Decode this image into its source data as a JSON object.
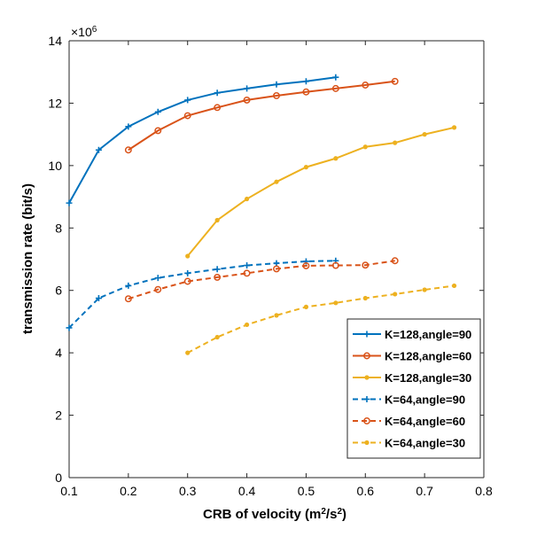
{
  "chart_data": {
    "type": "line",
    "title": "",
    "xlabel": "CRB of velocity (m",
    "xlabel_sup1": "2",
    "xlabel_mid": "/s",
    "xlabel_sup2": "2",
    "xlabel_end": ")",
    "ylabel": "transmission rate (bit/s)",
    "y_multiplier": "×10",
    "y_multiplier_exp": "6",
    "xlim": [
      0.1,
      0.8
    ],
    "ylim": [
      0,
      14
    ],
    "xticks": [
      "0.1",
      "0.2",
      "0.3",
      "0.4",
      "0.5",
      "0.6",
      "0.7",
      "0.8"
    ],
    "yticks": [
      "0",
      "2",
      "4",
      "6",
      "8",
      "10",
      "12",
      "14"
    ],
    "legend_position": "bottom-right",
    "series": [
      {
        "name": "K=128,angle=90",
        "color": "#0072BD",
        "dash": false,
        "marker": "plus",
        "x": [
          0.1,
          0.15,
          0.2,
          0.25,
          0.3,
          0.35,
          0.4,
          0.45,
          0.5,
          0.55
        ],
        "y": [
          8.8,
          10.5,
          11.25,
          11.72,
          12.1,
          12.33,
          12.47,
          12.6,
          12.7,
          12.83
        ]
      },
      {
        "name": "K=128,angle=60",
        "color": "#D95319",
        "dash": false,
        "marker": "circle",
        "x": [
          0.2,
          0.25,
          0.3,
          0.35,
          0.4,
          0.45,
          0.5,
          0.55,
          0.6,
          0.65
        ],
        "y": [
          10.5,
          11.12,
          11.6,
          11.86,
          12.1,
          12.24,
          12.36,
          12.47,
          12.58,
          12.7
        ]
      },
      {
        "name": "K=128,angle=30",
        "color": "#EDB120",
        "dash": false,
        "marker": "dot",
        "x": [
          0.3,
          0.35,
          0.4,
          0.45,
          0.5,
          0.55,
          0.6,
          0.65,
          0.7,
          0.75
        ],
        "y": [
          7.1,
          8.25,
          8.93,
          9.48,
          9.95,
          10.23,
          10.6,
          10.73,
          11.0,
          11.22
        ]
      },
      {
        "name": "K=64,angle=90",
        "color": "#0072BD",
        "dash": true,
        "marker": "plus",
        "x": [
          0.1,
          0.15,
          0.2,
          0.25,
          0.3,
          0.35,
          0.4,
          0.45,
          0.5,
          0.55
        ],
        "y": [
          4.8,
          5.75,
          6.15,
          6.4,
          6.55,
          6.68,
          6.8,
          6.87,
          6.93,
          6.95
        ]
      },
      {
        "name": "K=64,angle=60",
        "color": "#D95319",
        "dash": true,
        "marker": "circle",
        "x": [
          0.2,
          0.25,
          0.3,
          0.35,
          0.4,
          0.45,
          0.5,
          0.55,
          0.6,
          0.65
        ],
        "y": [
          5.73,
          6.03,
          6.29,
          6.42,
          6.55,
          6.69,
          6.79,
          6.8,
          6.81,
          6.95
        ]
      },
      {
        "name": "K=64,angle=30",
        "color": "#EDB120",
        "dash": true,
        "marker": "dot",
        "x": [
          0.3,
          0.35,
          0.4,
          0.45,
          0.5,
          0.55,
          0.6,
          0.65,
          0.7,
          0.75
        ],
        "y": [
          4.0,
          4.5,
          4.9,
          5.2,
          5.47,
          5.6,
          5.75,
          5.88,
          6.02,
          6.15
        ]
      }
    ]
  }
}
